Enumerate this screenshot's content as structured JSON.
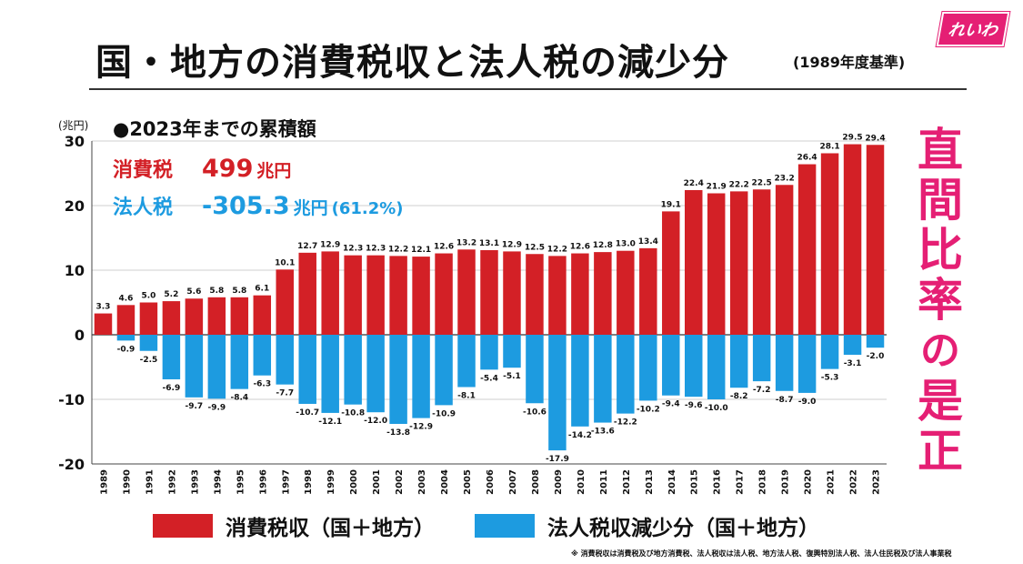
{
  "header": {
    "title": "国・地方の消費税収と法人税の減少分",
    "subtitle": "(1989年度基準)",
    "logo": "れいわ"
  },
  "summary": {
    "heading": "●2023年までの累積額",
    "consumption": {
      "label": "消費税",
      "amount": "499",
      "unit": "兆円"
    },
    "corporate": {
      "label": "法人税",
      "amount": "-305.3",
      "unit": "兆円",
      "pct": "(61.2%)"
    }
  },
  "side_text": {
    "line1": "直",
    "line2": "間",
    "line3": "比",
    "line4": "率",
    "line5": "の",
    "line6": "是",
    "line7": "正"
  },
  "legend": {
    "consumption": "消費税収（国＋地方）",
    "corporate": "法人税収減少分（国＋地方）"
  },
  "footnote": "※ 消費税収は消費税及び地方消費税、法人税収は法人税、地方法人税、復興特別法人税、法人住民税及び法人事業税",
  "colors": {
    "consumption": "#d32026",
    "corporate": "#1d9be0",
    "accent": "#e51f74"
  },
  "chart_data": {
    "type": "bar",
    "unit_label": "(兆円)",
    "ylim": [
      -20,
      30
    ],
    "yticks": [
      30,
      20,
      10,
      0,
      -10,
      -20
    ],
    "categories": [
      "1989",
      "1990",
      "1991",
      "1992",
      "1993",
      "1994",
      "1995",
      "1996",
      "1997",
      "1998",
      "1999",
      "2000",
      "2001",
      "2002",
      "2003",
      "2004",
      "2005",
      "2006",
      "2007",
      "2008",
      "2009",
      "2010",
      "2011",
      "2012",
      "2013",
      "2014",
      "2015",
      "2016",
      "2017",
      "2018",
      "2019",
      "2020",
      "2021",
      "2022",
      "2023"
    ],
    "series": [
      {
        "name": "消費税収（国＋地方）",
        "values": [
          3.3,
          4.6,
          5.0,
          5.2,
          5.6,
          5.8,
          5.8,
          6.1,
          10.1,
          12.7,
          12.9,
          12.3,
          12.3,
          12.2,
          12.1,
          12.6,
          13.2,
          13.1,
          12.9,
          12.5,
          12.2,
          12.6,
          12.8,
          13.0,
          13.4,
          19.1,
          22.4,
          21.9,
          22.2,
          22.5,
          23.2,
          26.4,
          28.1,
          29.5,
          29.4
        ],
        "labels": [
          "3.3",
          "4.6",
          "5.0",
          "5.2",
          "5.6",
          "5.8",
          "5.8",
          "6.1",
          "10.1",
          "12.7",
          "12.9",
          "12.3",
          "12.3",
          "12.2",
          "12.1",
          "12.6",
          "13.2",
          "13.1",
          "12.9",
          "12.5",
          "12.2",
          "12.6",
          "12.8",
          "13.0",
          "13.4",
          "19.1",
          "22.4",
          "21.9",
          "22.2",
          "22.5",
          "23.2",
          "26.4",
          "28.1",
          "29.5",
          "29.4"
        ]
      },
      {
        "name": "法人税収減少分（国＋地方）",
        "values": [
          0,
          -0.9,
          -2.5,
          -6.9,
          -9.7,
          -9.9,
          -8.4,
          -6.3,
          -7.7,
          -10.7,
          -12.1,
          -10.8,
          -12.0,
          -13.8,
          -12.9,
          -10.9,
          -8.1,
          -5.4,
          -5.1,
          -10.6,
          -17.9,
          -14.2,
          -13.6,
          -12.2,
          -10.2,
          -9.4,
          -9.6,
          -10.0,
          -8.2,
          -7.2,
          -8.7,
          -9.0,
          -5.3,
          -3.1,
          -2.0
        ],
        "labels": [
          "",
          "-0.9",
          "-2.5",
          "-6.9",
          "-9.7",
          "-9.9",
          "-8.4",
          "-6.3",
          "-7.7",
          "-10.7",
          "-12.1",
          "-10.8",
          "-12.0",
          "-13.8",
          "-12.9",
          "-10.9",
          "-8.1",
          "-5.4",
          "-5.1",
          "-10.6",
          "-17.9",
          "-14.2",
          "-13.6",
          "-12.2",
          "-10.2",
          "-9.4",
          "-9.6",
          "-10.0",
          "-8.2",
          "-7.2",
          "-8.7",
          "-9.0",
          "-5.3",
          "-3.1",
          "-2.0"
        ]
      }
    ]
  }
}
